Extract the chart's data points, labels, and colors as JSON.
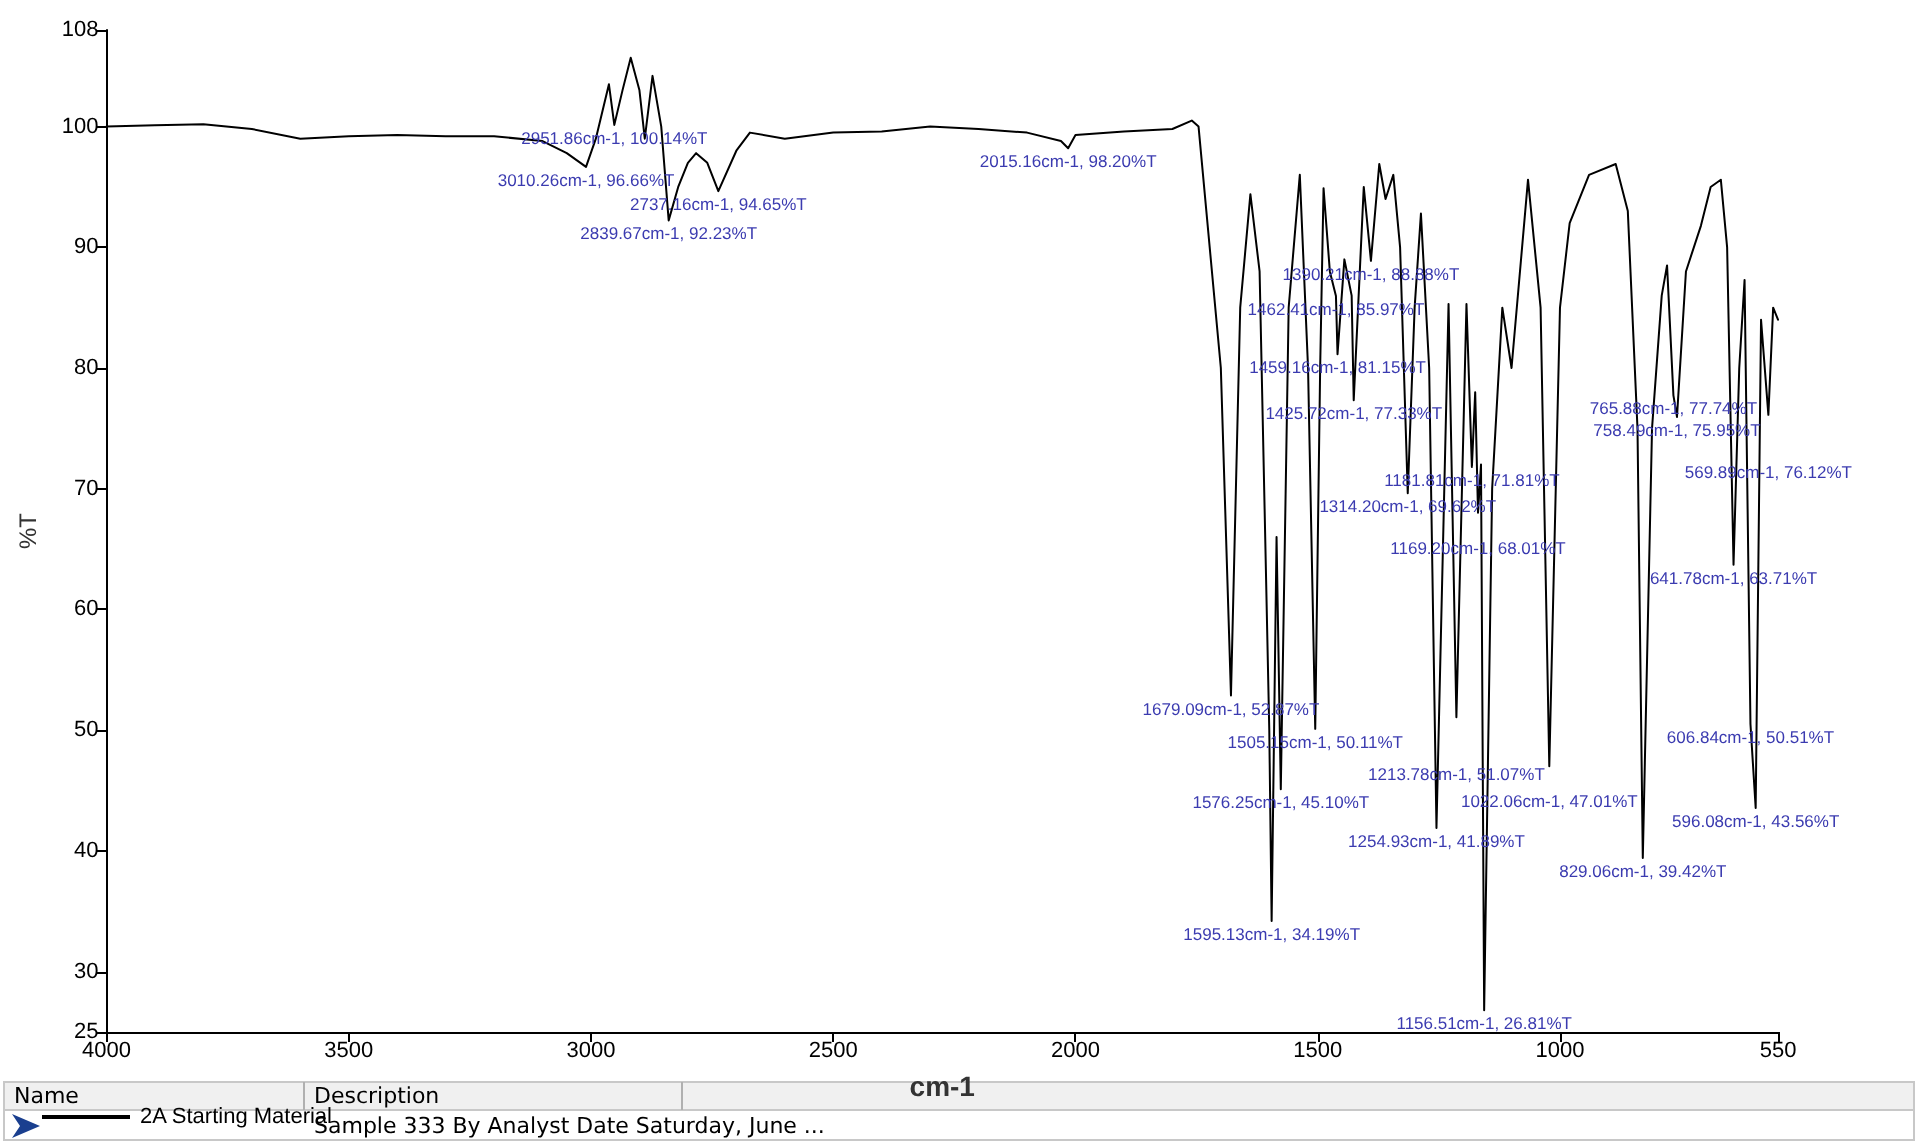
{
  "chart_data": {
    "type": "line",
    "xlabel": "cm-1",
    "ylabel": "%T",
    "xlim": [
      4000,
      550
    ],
    "xticks": [
      4000,
      3500,
      3000,
      2500,
      2000,
      1500,
      1000,
      550
    ],
    "ylim": [
      25,
      108
    ],
    "yticks": [
      25,
      30,
      40,
      50,
      60,
      70,
      80,
      90,
      100,
      108
    ],
    "grid": false,
    "marker": "none",
    "line_style": "solid",
    "legend": "bottom left",
    "series": [
      {
        "name": "2A Starting Material",
        "color": "#000000",
        "x": [
          4000,
          3900,
          3800,
          3700,
          3600,
          3500,
          3400,
          3300,
          3200,
          3100,
          3050,
          3010.26,
          2990,
          2963,
          2951.86,
          2935,
          2918,
          2900,
          2889,
          2873,
          2855,
          2839.67,
          2820,
          2800,
          2783,
          2760,
          2737.16,
          2700,
          2672,
          2600,
          2500,
          2400,
          2300,
          2200,
          2100,
          2030,
          2015.16,
          2000,
          1900,
          1800,
          1760,
          1746,
          1700,
          1679.09,
          1660,
          1639,
          1620,
          1600,
          1595.13,
          1585,
          1576.25,
          1560,
          1537,
          1520,
          1505.15,
          1495,
          1488,
          1475,
          1462.41,
          1459.16,
          1445,
          1430,
          1425.72,
          1405,
          1390.21,
          1373,
          1360,
          1344,
          1330,
          1314.2,
          1300,
          1287,
          1270,
          1254.93,
          1230,
          1213.78,
          1193,
          1181.81,
          1175,
          1169.2,
          1163,
          1156.51,
          1140,
          1119,
          1100,
          1066,
          1040,
          1022.06,
          1000,
          980,
          940,
          885,
          860,
          840,
          829.06,
          810,
          790,
          779,
          765.88,
          758.49,
          740,
          709,
          689,
          668,
          655,
          641.78,
          630,
          619,
          606.84,
          596.08,
          585,
          569.89,
          560,
          550
        ],
        "values": [
          100,
          100.1,
          100.2,
          99.8,
          99,
          99.2,
          99.3,
          99.2,
          99.2,
          98.8,
          97.8,
          96.66,
          99,
          103.5,
          100.14,
          103,
          105.7,
          103,
          99,
          104.2,
          100,
          92.23,
          95,
          97,
          97.8,
          97,
          94.65,
          98,
          99.5,
          99,
          99.5,
          99.6,
          100,
          99.8,
          99.5,
          98.8,
          98.2,
          99.3,
          99.6,
          99.8,
          100.5,
          100,
          80,
          52.87,
          85,
          94.4,
          88,
          50,
          34.19,
          66,
          45.1,
          85,
          96,
          80,
          50.11,
          80,
          94.9,
          88,
          85.97,
          81.15,
          89,
          86,
          77.33,
          95,
          88.88,
          96.9,
          94,
          96,
          90,
          69.62,
          85,
          92.8,
          80,
          41.89,
          85.3,
          51.07,
          85.3,
          71.81,
          78,
          68.01,
          72,
          26.81,
          70,
          85,
          80,
          95.6,
          85,
          47.01,
          85,
          92,
          96,
          96.9,
          93,
          75,
          39.42,
          75,
          86,
          88.5,
          77.74,
          75.95,
          88,
          91.8,
          95,
          95.6,
          90,
          63.71,
          80,
          87.3,
          50.51,
          43.56,
          84,
          76.12,
          85,
          84
        ]
      }
    ],
    "annotations": [
      "Name",
      "Description",
      "Sample 333 By Analyst Date Saturday, June ...",
      {
        "text": "3010.26cm-1, 96.66%T",
        "x": 3010.26,
        "y": 96.66
      },
      {
        "text": "2951.86cm-1, 100.14%T",
        "x": 2951.86,
        "y": 100.14
      },
      {
        "text": "2839.67cm-1, 92.23%T",
        "x": 2839.67,
        "y": 92.23
      },
      {
        "text": "2737.16cm-1, 94.65%T",
        "x": 2737.16,
        "y": 94.65
      },
      {
        "text": "2015.16cm-1, 98.20%T",
        "x": 2015.16,
        "y": 98.2
      },
      {
        "text": "1679.09cm-1, 52.87%T",
        "x": 1679.09,
        "y": 52.87
      },
      {
        "text": "1595.13cm-1, 34.19%T",
        "x": 1595.13,
        "y": 34.19
      },
      {
        "text": "1576.25cm-1, 45.10%T",
        "x": 1576.25,
        "y": 45.1
      },
      {
        "text": "1505.15cm-1, 50.11%T",
        "x": 1505.15,
        "y": 50.11
      },
      {
        "text": "1462.41cm-1, 85.97%T",
        "x": 1462.41,
        "y": 85.97
      },
      {
        "text": "1459.16cm-1, 81.15%T",
        "x": 1459.16,
        "y": 81.15
      },
      {
        "text": "1425.72cm-1, 77.33%T",
        "x": 1425.72,
        "y": 77.33
      },
      {
        "text": "1390.21cm-1, 88.88%T",
        "x": 1390.21,
        "y": 88.88
      },
      {
        "text": "1314.20cm-1, 69.62%T",
        "x": 1314.2,
        "y": 69.62
      },
      {
        "text": "1254.93cm-1, 41.89%T",
        "x": 1254.93,
        "y": 41.89
      },
      {
        "text": "1213.78cm-1, 51.07%T",
        "x": 1213.78,
        "y": 51.07
      },
      {
        "text": "1181.81cm-1, 71.81%T",
        "x": 1181.81,
        "y": 71.81
      },
      {
        "text": "1169.20cm-1, 68.01%T",
        "x": 1169.2,
        "y": 68.01
      },
      {
        "text": "1156.51cm-1, 26.81%T",
        "x": 1156.51,
        "y": 26.81
      },
      {
        "text": "1022.06cm-1, 47.01%T",
        "x": 1022.06,
        "y": 47.01
      },
      {
        "text": "829.06cm-1, 39.42%T",
        "x": 829.06,
        "y": 39.42
      },
      {
        "text": "765.88cm-1, 77.74%T",
        "x": 765.88,
        "y": 77.74
      },
      {
        "text": "758.49cm-1, 75.95%T",
        "x": 758.49,
        "y": 75.95
      },
      {
        "text": "641.78cm-1, 63.71%T",
        "x": 641.78,
        "y": 63.71
      },
      {
        "text": "606.84cm-1, 50.51%T",
        "x": 606.84,
        "y": 50.51
      },
      {
        "text": "596.08cm-1, 43.56%T",
        "x": 596.08,
        "y": 43.56
      },
      {
        "text": "569.89cm-1, 76.12%T",
        "x": 569.89,
        "y": 76.12
      }
    ]
  }
}
